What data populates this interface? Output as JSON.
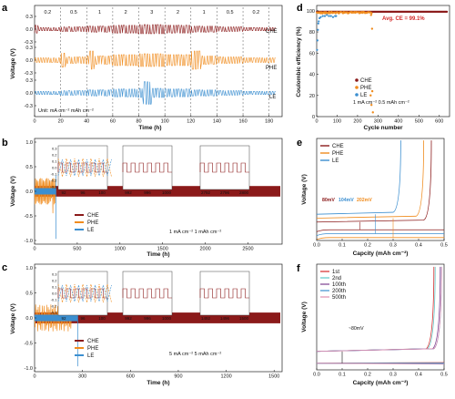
{
  "colors": {
    "CHE": "#8b1a1a",
    "PHE": "#f08c1e",
    "LE": "#3c8fd0",
    "red": "#d42a2a",
    "cyan": "#5ec8c8",
    "purple": "#7b3f8f"
  },
  "panels": {
    "a": {
      "label": "a",
      "unit": "Unit: mA cm⁻² mAh cm⁻²",
      "rates": [
        "0.2",
        "0.5",
        "1",
        "2",
        "3",
        "2",
        "1",
        "0.5",
        "0.2"
      ],
      "legend": [
        "CHE",
        "PHE",
        "LE"
      ]
    },
    "b": {
      "label": "b",
      "note": "1 mA cm⁻² 1 mAh cm⁻²",
      "legend": [
        "CHE",
        "PHE",
        "LE"
      ]
    },
    "c": {
      "label": "c",
      "note": "5 mA cm⁻² 5 mAh cm⁻²",
      "legend": [
        "CHE",
        "PHE",
        "LE"
      ]
    },
    "d": {
      "label": "d",
      "ce": "Avg. CE = 99.1%",
      "note": "1 mA cm⁻² 0.5 mAh cm⁻²",
      "legend": [
        "CHE",
        "PHE",
        "LE"
      ]
    },
    "e": {
      "label": "e",
      "legend": [
        "CHE",
        "PHE",
        "LE"
      ],
      "v1": "80mV",
      "v2": "104mV",
      "v3": "202mV"
    },
    "f": {
      "label": "f",
      "legend": [
        "1st",
        "2nd",
        "100th",
        "200th",
        "500th"
      ],
      "delta": "~80mV"
    }
  },
  "chart_data": [
    {
      "panel": "a",
      "type": "line",
      "title": "",
      "xlabel": "Time (h)",
      "ylabel": "Voltage (V)",
      "xlim": [
        0,
        190
      ],
      "ylim_each": [
        -0.3,
        0.3
      ],
      "x_ticks": [
        "0",
        "20",
        "40",
        "60",
        "80",
        "100",
        "120",
        "140",
        "160",
        "180"
      ],
      "y_ticks": [
        "-0.3",
        "0.0",
        "0.3"
      ],
      "rate_boundaries_h": [
        20,
        40,
        60,
        80,
        100,
        120,
        140,
        160,
        180
      ],
      "series": [
        {
          "name": "CHE"
        },
        {
          "name": "PHE"
        },
        {
          "name": "LE"
        }
      ]
    },
    {
      "panel": "b",
      "type": "line",
      "xlabel": "Time (h)",
      "ylabel": "Voltage (V)",
      "xlim": [
        0,
        2900
      ],
      "ylim": [
        -1.0,
        1.0
      ],
      "x_ticks": [
        "0",
        "500",
        "1000",
        "1500",
        "2000",
        "2500"
      ],
      "y_ticks": [
        "-1.0",
        "-0.5",
        "0.0",
        "0.5",
        "1.0"
      ],
      "insets": [
        {
          "x_ticks": [
            "92",
            "96",
            "100"
          ],
          "y_ticks": [
            "0.3",
            "0.2",
            "0.1",
            "0.0",
            "-0.1",
            "-0.2",
            "-0.3"
          ]
        },
        {
          "x_ticks": [
            "992",
            "996",
            "1000"
          ]
        },
        {
          "x_ticks": [
            "2792",
            "2796",
            "2800"
          ]
        }
      ],
      "series": [
        {
          "name": "CHE"
        },
        {
          "name": "PHE"
        },
        {
          "name": "LE"
        }
      ]
    },
    {
      "panel": "c",
      "type": "line",
      "xlabel": "Time (h)",
      "ylabel": "Voltage (V)",
      "xlim": [
        0,
        1550
      ],
      "ylim": [
        -1.0,
        1.0
      ],
      "x_ticks": [
        "0",
        "300",
        "600",
        "900",
        "1200",
        "1500"
      ],
      "y_ticks": [
        "-1.0",
        "-0.5",
        "0.0",
        "0.5",
        "1.0"
      ],
      "insets": [
        {
          "x_ticks": [
            "92",
            "96",
            "100"
          ],
          "y_ticks": [
            "0.3",
            "0.2",
            "0.1",
            "0.0",
            "-0.1",
            "-0.2",
            "-0.3"
          ]
        },
        {
          "x_ticks": [
            "992",
            "996",
            "1000"
          ]
        },
        {
          "x_ticks": [
            "1492",
            "1496",
            "1500"
          ]
        }
      ],
      "series": [
        {
          "name": "CHE"
        },
        {
          "name": "PHE"
        },
        {
          "name": "LE"
        }
      ]
    },
    {
      "panel": "d",
      "type": "scatter",
      "xlabel": "Cycle number",
      "ylabel": "Coulombic efficiency (%)",
      "xlim": [
        0,
        650
      ],
      "ylim": [
        0,
        105
      ],
      "x_ticks": [
        "0",
        "100",
        "200",
        "300",
        "400",
        "500",
        "600"
      ],
      "y_ticks": [
        "0",
        "20",
        "40",
        "60",
        "80",
        "100"
      ],
      "series": [
        {
          "name": "CHE",
          "summary": "~99.1% from cycle 1 to ~640"
        },
        {
          "name": "PHE",
          "summary": "~97-98% until ~270 cycles, then collapses to 5-25%"
        },
        {
          "name": "LE",
          "summary": "starts ~63-90%, ~95% until ~90 cycles"
        }
      ]
    },
    {
      "panel": "e",
      "type": "line",
      "xlabel": "Capcity (mAh cm⁻²)",
      "ylabel": "Voltage (V)",
      "xlim": [
        0,
        0.5
      ],
      "ylim": [
        -0.15,
        0.9
      ],
      "x_ticks": [
        "0.0",
        "0.1",
        "0.2",
        "0.3",
        "0.4",
        "0.5"
      ],
      "series": [
        {
          "name": "CHE",
          "plate": -0.04,
          "strip": 0.04,
          "end": 0.45
        },
        {
          "name": "PHE",
          "plate": -0.12,
          "strip": 0.08,
          "end": 0.42
        },
        {
          "name": "LE",
          "plate": -0.08,
          "strip": 0.12,
          "end": 0.33
        }
      ]
    },
    {
      "panel": "f",
      "type": "line",
      "xlabel": "Capcity (mAh cm⁻²)",
      "ylabel": "Voltage (V)",
      "xlim": [
        0,
        0.5
      ],
      "ylim": [
        -0.1,
        0.7
      ],
      "x_ticks": [
        "0.0",
        "0.1",
        "0.2",
        "0.3",
        "0.4",
        "0.5"
      ],
      "series": [
        {
          "name": "1st",
          "end": 0.46
        },
        {
          "name": "2nd",
          "end": 0.465
        },
        {
          "name": "100th",
          "end": 0.485
        },
        {
          "name": "200th",
          "end": 0.49
        },
        {
          "name": "500th",
          "end": 0.49
        }
      ]
    }
  ]
}
